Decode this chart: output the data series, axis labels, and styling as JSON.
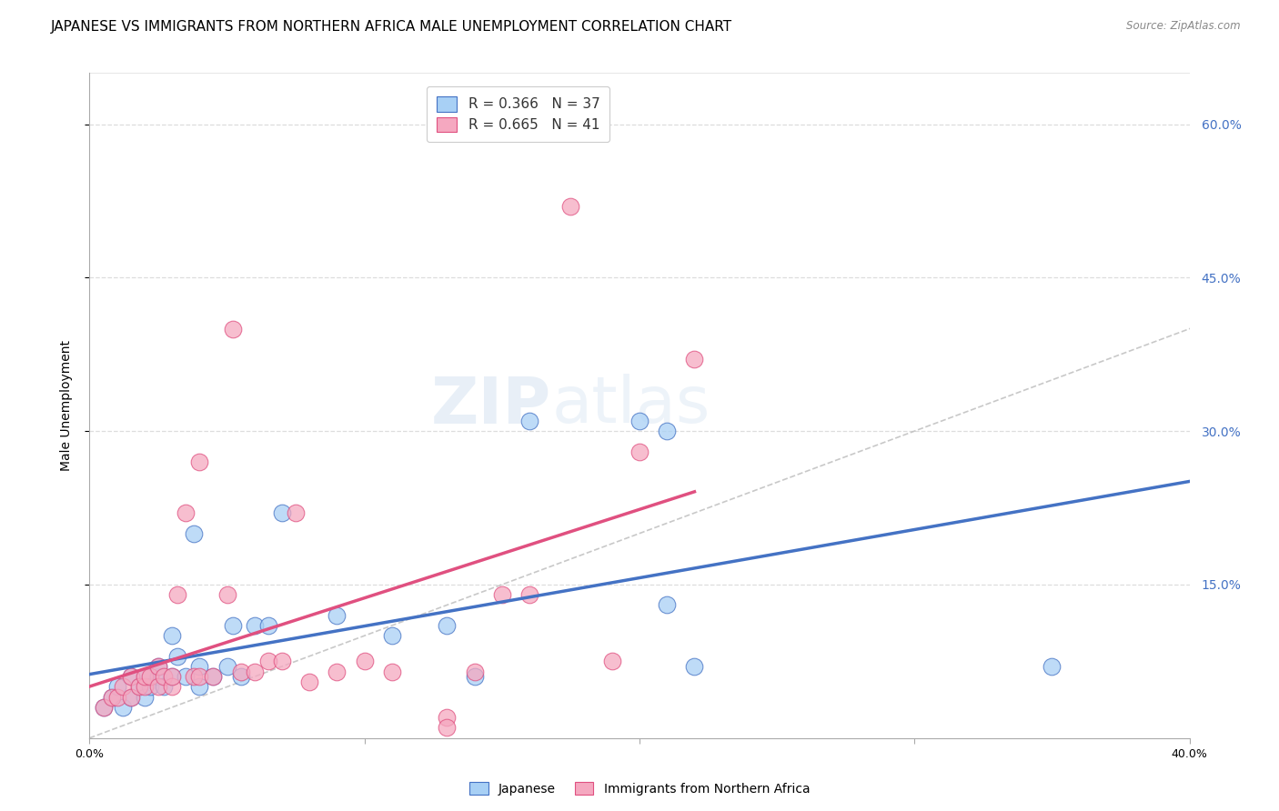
{
  "title": "JAPANESE VS IMMIGRANTS FROM NORTHERN AFRICA MALE UNEMPLOYMENT CORRELATION CHART",
  "source": "Source: ZipAtlas.com",
  "ylabel": "Male Unemployment",
  "xlim": [
    0.0,
    0.4
  ],
  "ylim": [
    0.0,
    0.65
  ],
  "color_japanese": "#A8D0F5",
  "color_northern_africa": "#F5A8C0",
  "color_line_japanese": "#4472C4",
  "color_line_northern_africa": "#E05080",
  "color_ref_line": "#BBBBBB",
  "japanese_x": [
    0.005,
    0.008,
    0.01,
    0.012,
    0.015,
    0.015,
    0.018,
    0.02,
    0.02,
    0.022,
    0.025,
    0.025,
    0.027,
    0.03,
    0.03,
    0.032,
    0.035,
    0.038,
    0.04,
    0.04,
    0.045,
    0.05,
    0.052,
    0.055,
    0.06,
    0.065,
    0.07,
    0.09,
    0.11,
    0.13,
    0.14,
    0.16,
    0.2,
    0.21,
    0.22,
    0.35,
    0.21
  ],
  "japanese_y": [
    0.03,
    0.04,
    0.05,
    0.03,
    0.04,
    0.06,
    0.05,
    0.04,
    0.06,
    0.05,
    0.06,
    0.07,
    0.05,
    0.06,
    0.1,
    0.08,
    0.06,
    0.2,
    0.05,
    0.07,
    0.06,
    0.07,
    0.11,
    0.06,
    0.11,
    0.11,
    0.22,
    0.12,
    0.1,
    0.11,
    0.06,
    0.31,
    0.31,
    0.3,
    0.07,
    0.07,
    0.13
  ],
  "northern_africa_x": [
    0.005,
    0.008,
    0.01,
    0.012,
    0.015,
    0.015,
    0.018,
    0.02,
    0.02,
    0.022,
    0.025,
    0.025,
    0.027,
    0.03,
    0.03,
    0.032,
    0.035,
    0.038,
    0.04,
    0.04,
    0.045,
    0.05,
    0.052,
    0.055,
    0.06,
    0.065,
    0.07,
    0.075,
    0.08,
    0.09,
    0.1,
    0.11,
    0.13,
    0.14,
    0.15,
    0.16,
    0.175,
    0.19,
    0.2,
    0.22,
    0.13
  ],
  "northern_africa_y": [
    0.03,
    0.04,
    0.04,
    0.05,
    0.04,
    0.06,
    0.05,
    0.05,
    0.06,
    0.06,
    0.05,
    0.07,
    0.06,
    0.05,
    0.06,
    0.14,
    0.22,
    0.06,
    0.06,
    0.27,
    0.06,
    0.14,
    0.4,
    0.065,
    0.065,
    0.075,
    0.075,
    0.22,
    0.055,
    0.065,
    0.075,
    0.065,
    0.02,
    0.065,
    0.14,
    0.14,
    0.52,
    0.075,
    0.28,
    0.37,
    0.01
  ],
  "background_color": "#FFFFFF",
  "grid_color": "#DDDDDD",
  "title_fontsize": 11,
  "axis_label_fontsize": 10,
  "tick_fontsize": 9,
  "legend_label1": "R = 0.366   N = 37",
  "legend_label2": "R = 0.665   N = 41",
  "watermark": "ZIPatlas",
  "bottom_label1": "Japanese",
  "bottom_label2": "Immigrants from Northern Africa"
}
